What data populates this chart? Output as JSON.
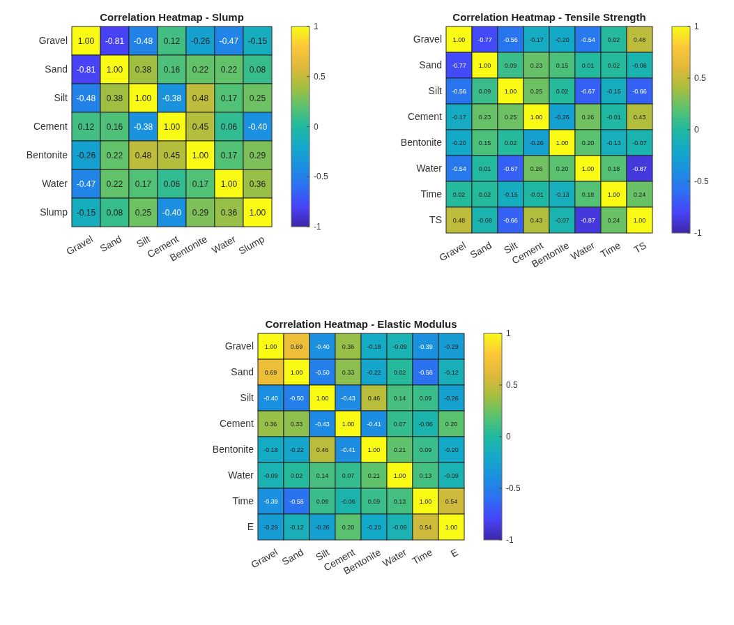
{
  "chart_data": [
    {
      "type": "heatmap",
      "title": "Correlation Heatmap - Slump",
      "categories": [
        "Gravel",
        "Sand",
        "Silt",
        "Cement",
        "Bentonite",
        "Water",
        "Slump"
      ],
      "y_categories": [
        "Gravel",
        "Sand",
        "Silt",
        "Cement",
        "Bentonite",
        "Water",
        "Slump"
      ],
      "cells": [
        [
          1.0,
          -0.81,
          -0.48,
          0.12,
          -0.26,
          -0.47,
          -0.15
        ],
        [
          -0.81,
          1.0,
          0.38,
          0.16,
          0.22,
          0.22,
          0.08
        ],
        [
          -0.48,
          0.38,
          1.0,
          -0.38,
          0.48,
          0.17,
          0.25
        ],
        [
          0.12,
          0.16,
          -0.38,
          1.0,
          0.45,
          0.06,
          -0.4
        ],
        [
          -0.26,
          0.22,
          0.48,
          0.45,
          1.0,
          0.17,
          0.29
        ],
        [
          -0.47,
          0.22,
          0.17,
          0.06,
          0.17,
          1.0,
          0.36
        ],
        [
          -0.15,
          0.08,
          0.25,
          -0.4,
          0.29,
          0.36,
          1.0
        ]
      ],
      "cell_labels": [
        [
          "1.00",
          "-0.81",
          "-0.48",
          "0.12",
          "-0.26",
          "-0.47",
          "-0.15"
        ],
        [
          "-0.81",
          "1.00",
          "0.38",
          "0.16",
          "0.22",
          "0.22",
          "0.08"
        ],
        [
          "-0.48",
          "0.38",
          "1.00",
          "-0.38",
          "0.48",
          "0.17",
          "0.25"
        ],
        [
          "0.12",
          "0.16",
          "-0.38",
          "1.00",
          "0.45",
          "0.06",
          "-0.40"
        ],
        [
          "-0.26",
          "0.22",
          "0.48",
          "0.45",
          "1.00",
          "0.17",
          "0.29"
        ],
        [
          "-0.47",
          "0.22",
          "0.17",
          "0.06",
          "0.17",
          "1.00",
          "0.36"
        ],
        [
          "-0.15",
          "0.08",
          "0.25",
          "-0.40",
          "0.29",
          "0.36",
          "1.00"
        ]
      ],
      "clim": [
        -1,
        1
      ],
      "cticks": [
        -1,
        -0.5,
        0,
        0.5,
        1
      ]
    },
    {
      "type": "heatmap",
      "title": "Correlation Heatmap - Tensile Strength",
      "categories": [
        "Gravel",
        "Sand",
        "Silt",
        "Cement",
        "Bentonite",
        "Water",
        "Time",
        "TS"
      ],
      "y_categories": [
        "Gravel",
        "Sand",
        "Silt",
        "Cement",
        "Bentonite",
        "Water",
        "Time",
        "TS"
      ],
      "cells": [
        [
          1.0,
          -0.77,
          -0.56,
          -0.17,
          -0.2,
          -0.54,
          0.02,
          0.48
        ],
        [
          -0.77,
          1.0,
          0.09,
          0.23,
          0.15,
          0.01,
          0.02,
          -0.08
        ],
        [
          -0.56,
          0.09,
          1.0,
          0.25,
          0.02,
          -0.67,
          -0.15,
          -0.66
        ],
        [
          -0.17,
          0.23,
          0.25,
          1.0,
          -0.26,
          0.26,
          -0.01,
          0.43
        ],
        [
          -0.2,
          0.15,
          0.02,
          -0.26,
          1.0,
          0.2,
          -0.13,
          -0.07
        ],
        [
          -0.54,
          0.01,
          -0.67,
          0.26,
          0.2,
          1.0,
          0.18,
          -0.87
        ],
        [
          0.02,
          0.02,
          -0.15,
          -0.01,
          -0.13,
          0.18,
          1.0,
          0.24
        ],
        [
          0.48,
          -0.08,
          -0.66,
          0.43,
          -0.07,
          -0.87,
          0.24,
          1.0
        ]
      ],
      "cell_labels": [
        [
          "1.00",
          "-0.77",
          "-0.56",
          "-0.17",
          "-0.20",
          "-0.54",
          "0.02",
          "0.48"
        ],
        [
          "-0.77",
          "1.00",
          "0.09",
          "0.23",
          "0.15",
          "0.01",
          "0.02",
          "-0.08"
        ],
        [
          "-0.56",
          "0.09",
          "1.00",
          "0.25",
          "0.02",
          "-0.67",
          "-0.15",
          "-0.66"
        ],
        [
          "-0.17",
          "0.23",
          "0.25",
          "1.00",
          "-0.26",
          "0.26",
          "-0.01",
          "0.43"
        ],
        [
          "-0.20",
          "0.15",
          "0.02",
          "-0.26",
          "1.00",
          "0.20",
          "-0.13",
          "-0.07"
        ],
        [
          "-0.54",
          "0.01",
          "-0.67",
          "0.26",
          "0.20",
          "1.00",
          "0.18",
          "-0.87"
        ],
        [
          "0.02",
          "0.02",
          "-0.15",
          "-0.01",
          "-0.13",
          "0.18",
          "1.00",
          "0.24"
        ],
        [
          "0.48",
          "-0.08",
          "-0.66",
          "0.43",
          "-0.07",
          "-0.87",
          "0.24",
          "1.00"
        ]
      ],
      "clim": [
        -1,
        1
      ],
      "cticks": [
        -1,
        -0.5,
        0,
        0.5,
        1
      ]
    },
    {
      "type": "heatmap",
      "title": "Correlation Heatmap - Elastic Modulus",
      "categories": [
        "Gravel",
        "Sand",
        "Silt",
        "Cement",
        "Bentonite",
        "Water",
        "Time",
        "E"
      ],
      "y_categories": [
        "Gravel",
        "Sand",
        "Silt",
        "Cement",
        "Bentonite",
        "Water",
        "Time",
        "E"
      ],
      "cells": [
        [
          1.0,
          0.69,
          -0.4,
          0.36,
          -0.18,
          -0.09,
          -0.39,
          -0.29
        ],
        [
          0.69,
          1.0,
          -0.5,
          0.33,
          -0.22,
          0.02,
          -0.58,
          -0.12
        ],
        [
          -0.4,
          -0.5,
          1.0,
          -0.43,
          0.46,
          0.14,
          0.09,
          -0.26
        ],
        [
          0.36,
          0.33,
          -0.43,
          1.0,
          -0.41,
          0.07,
          -0.06,
          0.2
        ],
        [
          -0.18,
          -0.22,
          0.46,
          -0.41,
          1.0,
          0.21,
          0.09,
          -0.2
        ],
        [
          -0.09,
          0.02,
          0.14,
          0.07,
          0.21,
          1.0,
          0.13,
          -0.09
        ],
        [
          -0.39,
          -0.58,
          0.09,
          -0.06,
          0.09,
          0.13,
          1.0,
          0.54
        ],
        [
          -0.29,
          -0.12,
          -0.26,
          0.2,
          -0.2,
          -0.09,
          0.54,
          1.0
        ]
      ],
      "cell_labels": [
        [
          "1.00",
          "0.69",
          "-0.40",
          "0.36",
          "-0.18",
          "-0.09",
          "-0.39",
          "-0.29"
        ],
        [
          "0.69",
          "1.00",
          "-0.50",
          "0.33",
          "-0.22",
          "0.02",
          "-0.58",
          "-0.12"
        ],
        [
          "-0.40",
          "-0.50",
          "1.00",
          "-0.43",
          "0.46",
          "0.14",
          "0.09",
          "-0.26"
        ],
        [
          "0.36",
          "0.33",
          "-0.43",
          "1.00",
          "-0.41",
          "0.07",
          "-0.06",
          "0.20"
        ],
        [
          "-0.18",
          "-0.22",
          "0.46",
          "-0.41",
          "1.00",
          "0.21",
          "0.09",
          "-0.20"
        ],
        [
          "-0.09",
          "0.02",
          "0.14",
          "0.07",
          "0.21",
          "1.00",
          "0.13",
          "-0.09"
        ],
        [
          "-0.39",
          "-0.58",
          "0.09",
          "-0.06",
          "0.09",
          "0.13",
          "1.00",
          "0.54"
        ],
        [
          "-0.29",
          "-0.12",
          "-0.26",
          "0.20",
          "-0.20",
          "-0.09",
          "0.54",
          "1.00"
        ]
      ],
      "clim": [
        -1,
        1
      ],
      "cticks": [
        -1,
        -0.5,
        0,
        0.5,
        1
      ]
    }
  ]
}
